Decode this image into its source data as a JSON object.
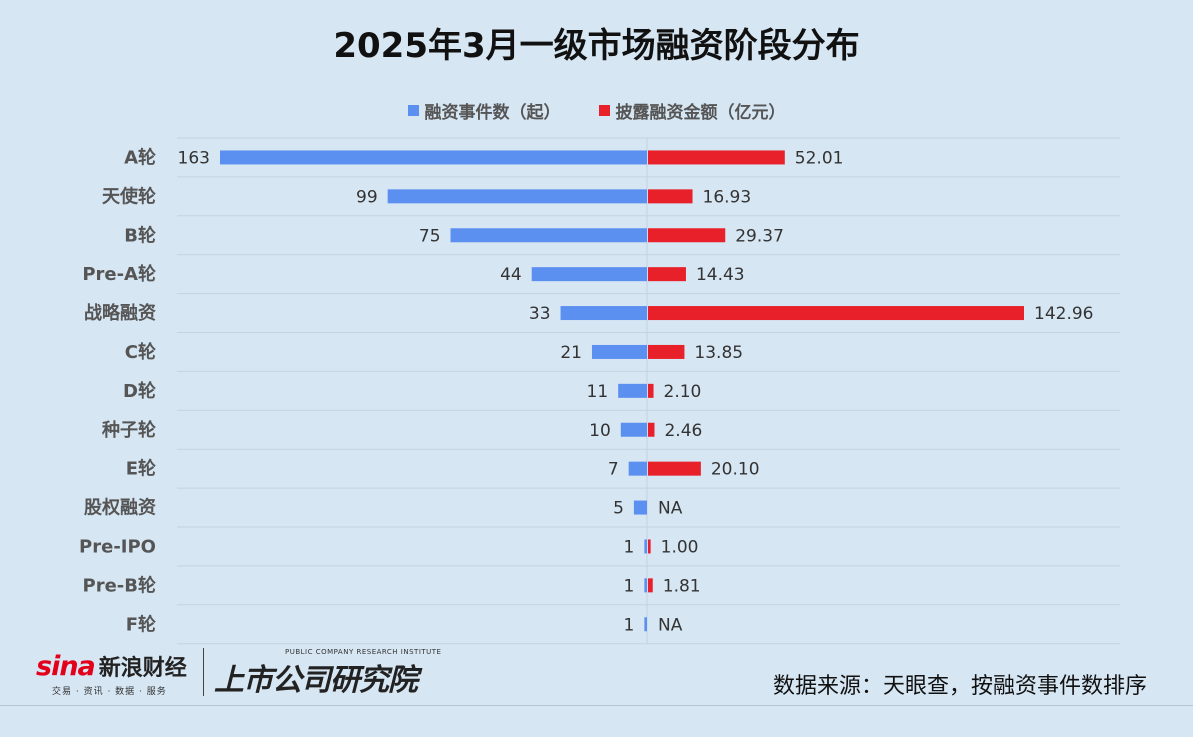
{
  "title": "2025年3月一级市场融资阶段分布",
  "legend": {
    "count_label": "融资事件数（起）",
    "amount_label": "披露融资金额（亿元）"
  },
  "colors": {
    "count": "#5b8ff0",
    "amount": "#e8202a"
  },
  "chart_data": {
    "type": "bar",
    "orientation": "horizontal-diverging",
    "categories": [
      "A轮",
      "天使轮",
      "B轮",
      "Pre-A轮",
      "战略融资",
      "C轮",
      "D轮",
      "种子轮",
      "E轮",
      "股权融资",
      "Pre-IPO",
      "Pre-B轮",
      "F轮"
    ],
    "series": [
      {
        "name": "融资事件数（起）",
        "values": [
          163,
          99,
          75,
          44,
          33,
          21,
          11,
          10,
          7,
          5,
          1,
          1,
          1
        ],
        "labels": [
          "163",
          "99",
          "75",
          "44",
          "33",
          "21",
          "11",
          "10",
          "7",
          "5",
          "1",
          "1",
          "1"
        ]
      },
      {
        "name": "披露融资金额（亿元）",
        "values": [
          52.01,
          16.93,
          29.37,
          14.43,
          142.96,
          13.85,
          2.1,
          2.46,
          20.1,
          null,
          1.0,
          1.81,
          null
        ],
        "labels": [
          "52.01",
          "16.93",
          "29.37",
          "14.43",
          "142.96",
          "13.85",
          "2.10",
          "2.46",
          "20.10",
          "NA",
          "1.00",
          "1.81",
          "NA"
        ]
      }
    ],
    "count_max": 163,
    "amount_max": 142.96
  },
  "footer": {
    "sina_word": "sina",
    "sina_cn": "新浪财经",
    "sina_sub": "交易 · 资讯 · 数据 · 服务",
    "pcri_en": "PUBLIC COMPANY RESEARCH INSTITUTE",
    "pcri_cn": "上市公司研究院",
    "source": "数据来源：天眼查，按融资事件数排序"
  }
}
